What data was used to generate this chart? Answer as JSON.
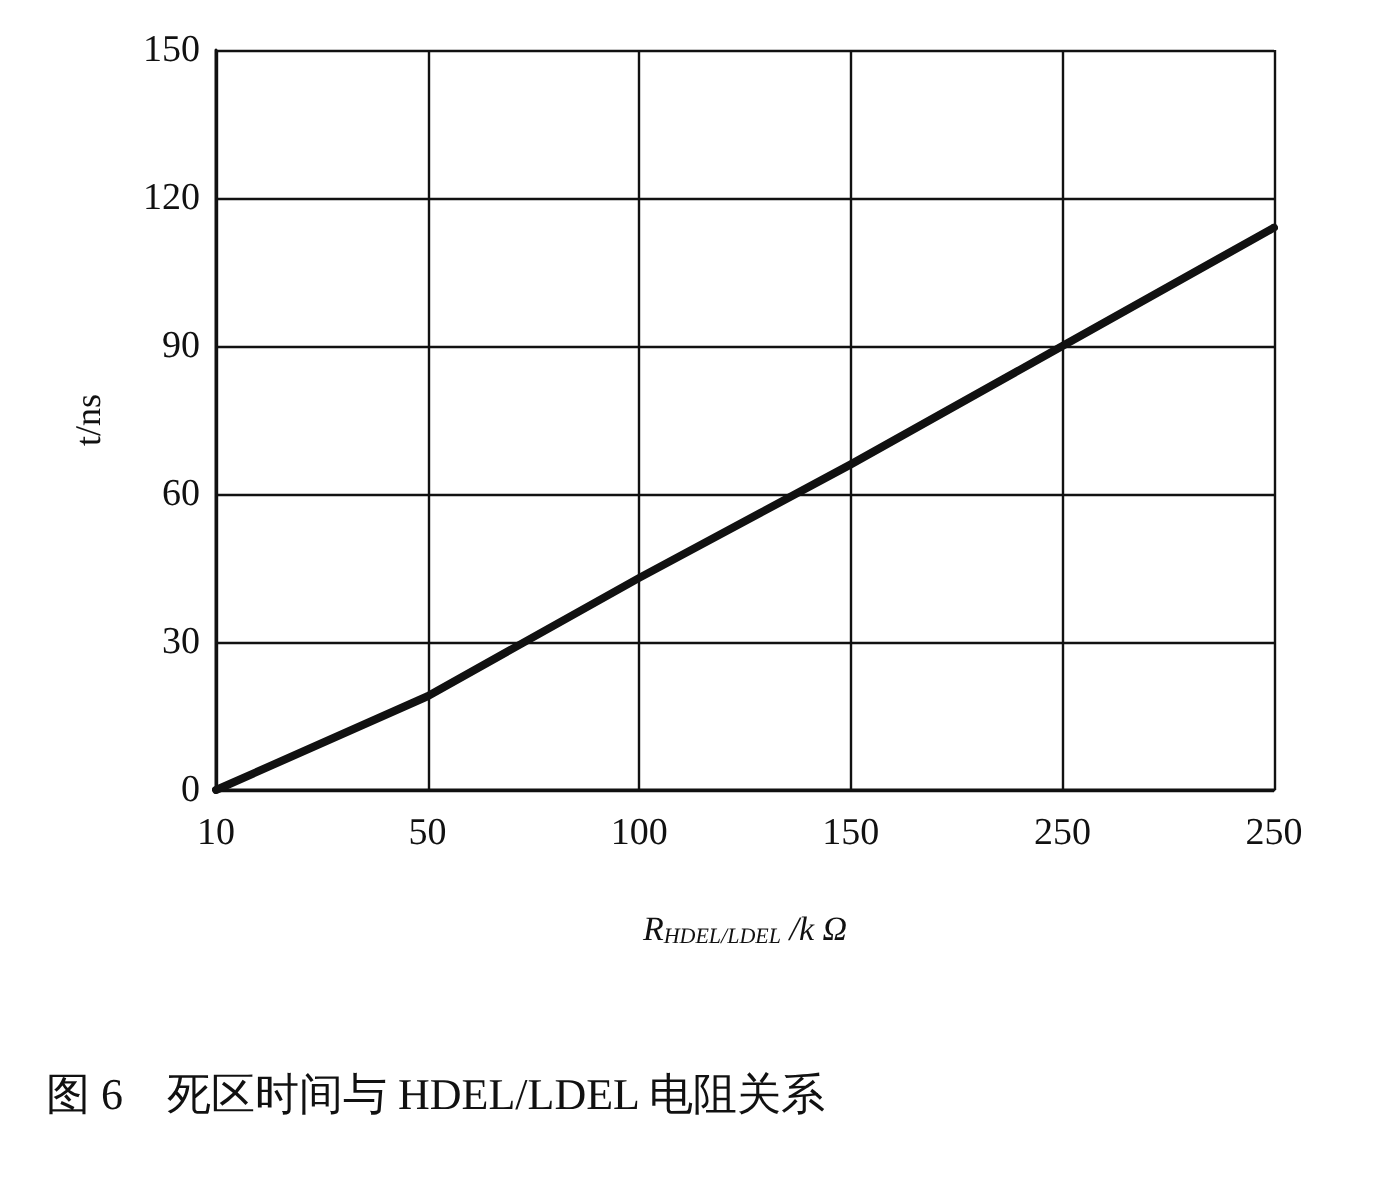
{
  "chart_data": {
    "type": "line",
    "title": "图 6　死区时间与 HDEL/LDEL 电阻关系",
    "xlabel": "R$_{HDEL/LDEL}$ /k Ω",
    "ylabel": "t/ns",
    "categories": [
      "10",
      "50",
      "100",
      "150",
      "250",
      "250"
    ],
    "series": [
      {
        "color": "#111111",
        "values": [
          0,
          19,
          43,
          66,
          90,
          114
        ]
      }
    ],
    "ylim": [
      0,
      150
    ],
    "yticks": [
      0,
      30,
      60,
      90,
      120,
      150
    ],
    "grid": true,
    "marker": "none",
    "line_style": "solid"
  }
}
